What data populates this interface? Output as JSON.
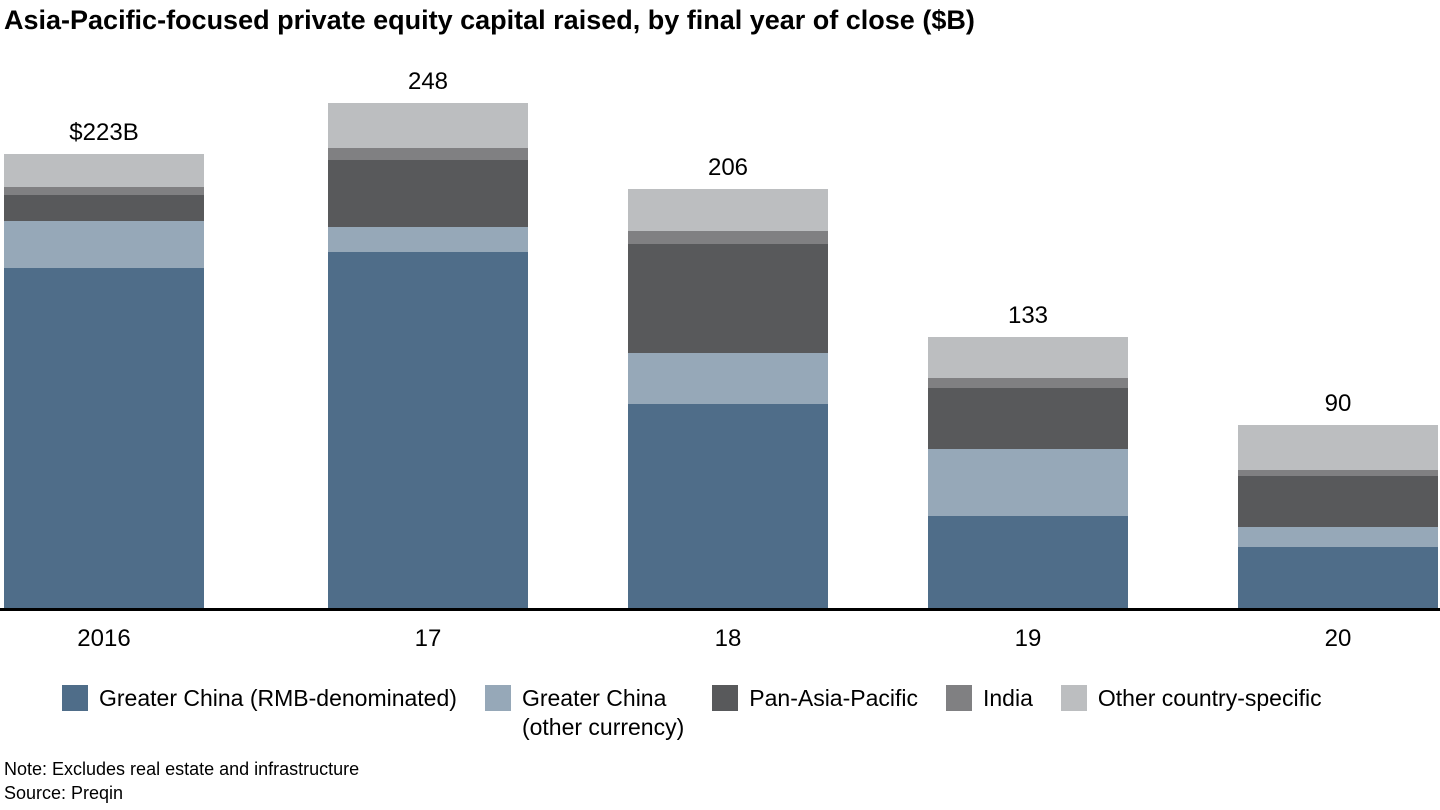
{
  "title": "Asia-Pacific-focused private equity capital raised, by final year of close ($B)",
  "chart_data": {
    "type": "bar",
    "stacked": true,
    "title": "Asia-Pacific-focused private equity capital raised, by final year of close ($B)",
    "unit": "$B",
    "categories": [
      "2016",
      "17",
      "18",
      "19",
      "20"
    ],
    "totals": [
      223,
      248,
      206,
      133,
      90
    ],
    "total_labels": [
      "$223B",
      "248",
      "206",
      "133",
      "90"
    ],
    "series": [
      {
        "name": "Greater China (RMB-denominated)",
        "color": "#4f6d89",
        "values": [
          167,
          175,
          100,
          45,
          30
        ]
      },
      {
        "name": "Greater China (other currency)",
        "color": "#96a8b8",
        "values": [
          23,
          12,
          25,
          33,
          10
        ]
      },
      {
        "name": "Pan-Asia-Pacific",
        "color": "#58595b",
        "values": [
          13,
          33,
          54,
          30,
          25
        ]
      },
      {
        "name": "India",
        "color": "#808082",
        "values": [
          4,
          6,
          6,
          5,
          3
        ]
      },
      {
        "name": "Other country-specific",
        "color": "#bcbec0",
        "values": [
          16,
          22,
          21,
          20,
          22
        ]
      }
    ],
    "legend": [
      {
        "lines": [
          "Greater China (RMB-denominated)"
        ]
      },
      {
        "lines": [
          "Greater China",
          "(other currency)"
        ]
      },
      {
        "lines": [
          "Pan-Asia-Pacific"
        ]
      },
      {
        "lines": [
          "India"
        ]
      },
      {
        "lines": [
          "Other country-specific"
        ]
      }
    ],
    "legend_position": "bottom",
    "grid": false,
    "axis": {
      "baseline_color": "#000000",
      "ylim": [
        0,
        260
      ]
    }
  },
  "footer": {
    "note": "Note: Excludes real estate and infrastructure",
    "source": "Source: Preqin"
  }
}
